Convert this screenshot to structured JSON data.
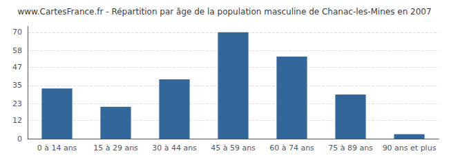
{
  "chart_data": {
    "type": "bar",
    "title": "www.CartesFrance.fr - Répartition par âge de la population masculine de Chanac-les-Mines en 2007",
    "categories": [
      "0 à 14 ans",
      "15 à 29 ans",
      "30 à 44 ans",
      "45 à 59 ans",
      "60 à 74 ans",
      "75 à 89 ans",
      "90 ans et plus"
    ],
    "values": [
      33,
      21,
      39,
      70,
      54,
      29,
      3
    ],
    "color": "#336699",
    "ylim": [
      0,
      74
    ],
    "yticks": [
      0,
      12,
      23,
      35,
      47,
      58,
      70
    ],
    "grid": true
  }
}
